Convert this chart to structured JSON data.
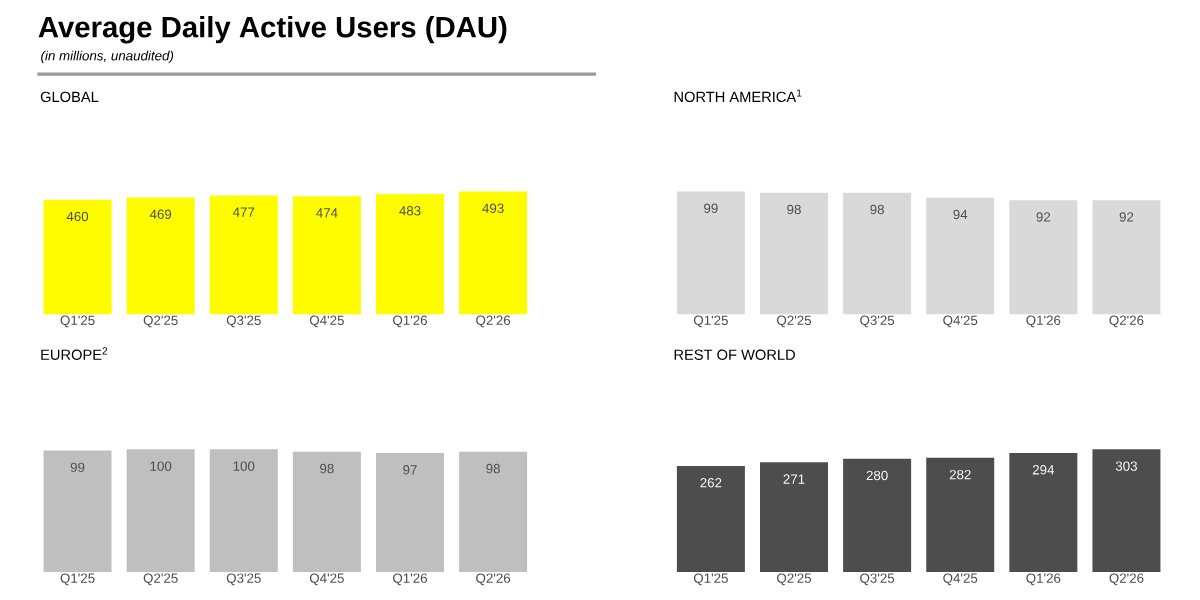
{
  "chart_data": [
    {
      "type": "other",
      "title": "Average Daily Active Users (DAU)",
      "subtitle": "(in millions, unaudited)"
    },
    {
      "type": "bar",
      "title": "GLOBAL",
      "categories": [
        "Q1'25",
        "Q2'25",
        "Q3'25",
        "Q4'25",
        "Q1'26",
        "Q2'26"
      ],
      "values": [
        460,
        469,
        477,
        474,
        483,
        493
      ],
      "color": "#fffc00",
      "data_labels": true
    },
    {
      "type": "bar",
      "title": "NORTH AMERICA$^{1}$",
      "categories": [
        "Q1'25",
        "Q2'25",
        "Q3'25",
        "Q4'25",
        "Q1'26",
        "Q2'26"
      ],
      "values": [
        99,
        98,
        98,
        94,
        92,
        92
      ],
      "color": "#d9d9d9",
      "data_labels": true
    },
    {
      "type": "bar",
      "title": "EUROPE$^{2}$",
      "categories": [
        "Q1'25",
        "Q2'25",
        "Q3'25",
        "Q4'25",
        "Q1'26",
        "Q2'26"
      ],
      "values": [
        99,
        100,
        100,
        98,
        97,
        98
      ],
      "color": "#bfbfbf",
      "data_labels": true
    },
    {
      "type": "bar",
      "title": "REST OF WORLD",
      "categories": [
        "Q1'25",
        "Q2'25",
        "Q3'25",
        "Q4'25",
        "Q1'26",
        "Q2'26"
      ],
      "values": [
        262,
        271,
        280,
        282,
        294,
        303
      ],
      "color": "#4d4d4d",
      "data_labels": true
    }
  ]
}
